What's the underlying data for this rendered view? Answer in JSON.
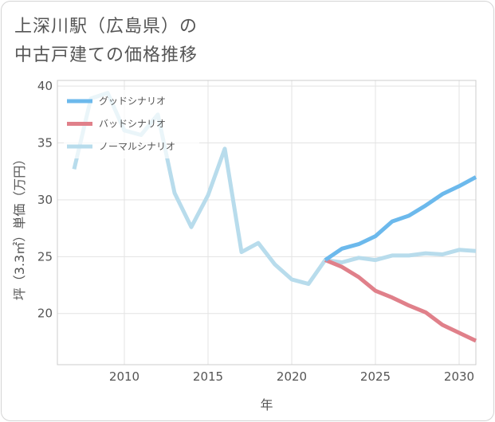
{
  "title_lines": [
    "上深川駅（広島県）の",
    "中古戸建ての価格推移"
  ],
  "chart_data": {
    "type": "line",
    "title": "上深川駅（広島県）の中古戸建ての価格推移",
    "xlabel": "年",
    "ylabel": "坪（3.3㎡）単価（万円）",
    "xlim": [
      2006,
      2031
    ],
    "ylim": [
      15.5,
      40.5
    ],
    "x_ticks": [
      2010,
      2015,
      2020,
      2025,
      2030
    ],
    "y_ticks": [
      20,
      25,
      30,
      35,
      40
    ],
    "grid": true,
    "legend_position": "top-left",
    "series": [
      {
        "name": "グッドシナリオ",
        "color": "#6cb9ec",
        "x": [
          2022,
          2023,
          2024,
          2025,
          2026,
          2027,
          2028,
          2029,
          2030,
          2031
        ],
        "values": [
          24.7,
          25.7,
          26.1,
          26.8,
          28.1,
          28.6,
          29.5,
          30.5,
          31.2,
          32.0
        ]
      },
      {
        "name": "バッドシナリオ",
        "color": "#e0808a",
        "x": [
          2022,
          2023,
          2024,
          2025,
          2026,
          2027,
          2028,
          2029,
          2030,
          2031
        ],
        "values": [
          24.7,
          24.1,
          23.2,
          22.0,
          21.4,
          20.7,
          20.1,
          19.0,
          18.3,
          17.6
        ]
      },
      {
        "name": "ノーマルシナリオ",
        "color": "#b8dcec",
        "x": [
          2007,
          2008,
          2009,
          2010,
          2011,
          2012,
          2013,
          2014,
          2015,
          2016,
          2017,
          2018,
          2019,
          2020,
          2021,
          2022,
          2023,
          2024,
          2025,
          2026,
          2027,
          2028,
          2029,
          2030,
          2031
        ],
        "values": [
          32.7,
          38.9,
          39.4,
          36.1,
          35.7,
          37.5,
          30.6,
          27.6,
          30.4,
          34.5,
          25.4,
          26.2,
          24.3,
          23.0,
          22.6,
          24.7,
          24.5,
          24.9,
          24.7,
          25.1,
          25.1,
          25.3,
          25.2,
          25.6,
          25.5
        ]
      }
    ]
  }
}
